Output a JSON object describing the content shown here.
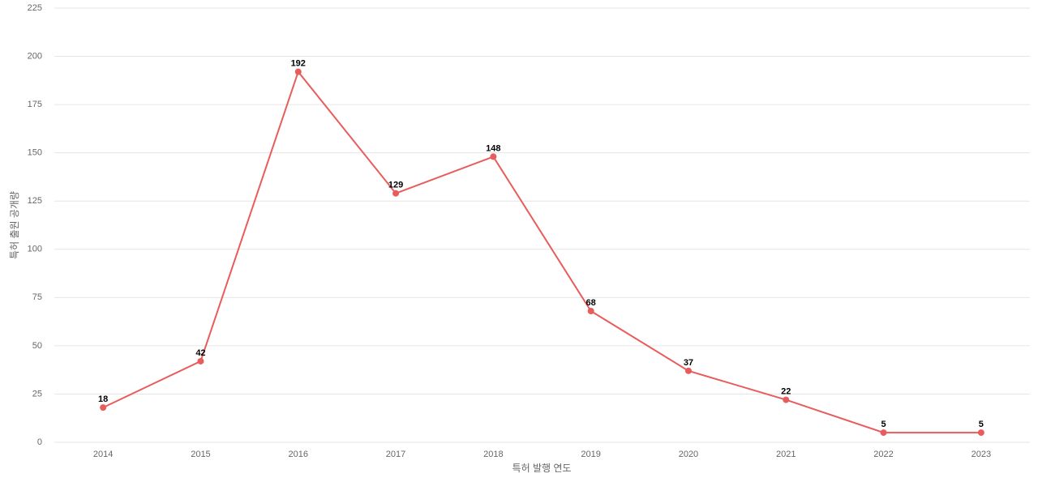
{
  "chart_data": {
    "type": "line",
    "x_label": "특허 발행 연도",
    "y_label": "특허 출원 공개량",
    "categories": [
      "2014",
      "2015",
      "2016",
      "2017",
      "2018",
      "2019",
      "2020",
      "2021",
      "2022",
      "2023"
    ],
    "series": [
      {
        "color": "#e85c5c",
        "values": [
          18,
          42,
          192,
          129,
          148,
          68,
          37,
          22,
          5,
          5
        ]
      }
    ],
    "ylim": [
      0,
      225
    ],
    "yticks": [
      0,
      25,
      50,
      75,
      100,
      125,
      150,
      175,
      200,
      225
    ],
    "grid": true
  }
}
